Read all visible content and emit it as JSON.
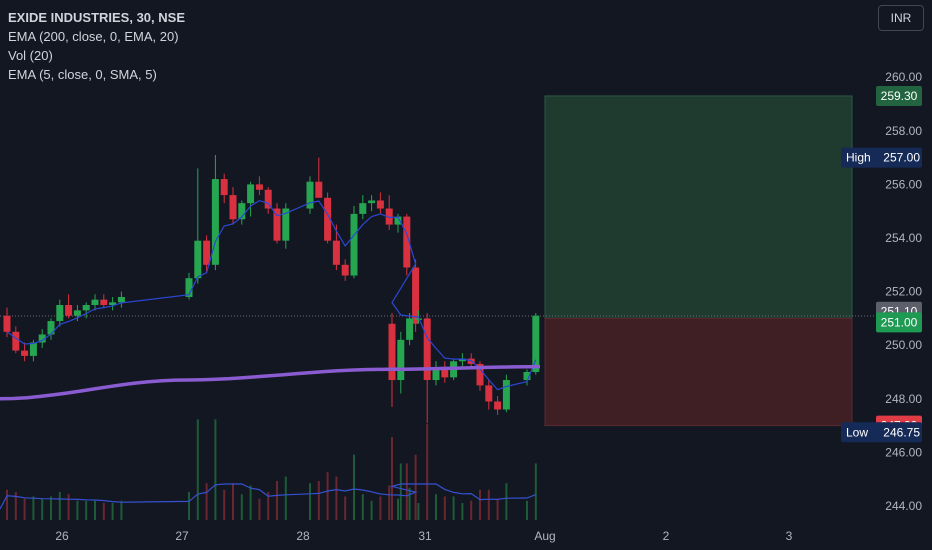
{
  "header": {
    "symbol": "EXIDE INDUSTRIES, 30, NSE",
    "indicators": [
      "EMA (200, close, 0, EMA, 20)",
      "Vol (20)",
      "EMA (5, close, 0, SMA, 5)"
    ],
    "currency_button": "INR"
  },
  "colors": {
    "background": "#131722",
    "up": "#26a650",
    "down": "#d9313f",
    "ema200": "#8a5cd1",
    "ema5": "#2b48d4",
    "volume_ma": "#3551d1",
    "profit_zone": "#1f3a2e",
    "loss_zone": "#3f1e24",
    "axis_text": "#b2b5be"
  },
  "chart_data": {
    "type": "candlestick",
    "title": "EXIDE INDUSTRIES, 30, NSE",
    "ylim": [
      243.5,
      261
    ],
    "y_ticks": [
      "244.00",
      "246.00",
      "248.00",
      "250.00",
      "252.00",
      "254.00",
      "256.00",
      "258.00",
      "260.00"
    ],
    "x_ticks": [
      "26",
      "27",
      "28",
      "31",
      "Aug",
      "2",
      "3"
    ],
    "grid": false,
    "price_labels": {
      "target": "259.30",
      "last": "251.10",
      "entry": "251.00",
      "stop": "247.00",
      "high_label": "High",
      "high_value": "257.00",
      "low_label": "Low",
      "low_value": "246.75"
    },
    "position_zone": {
      "entry": 251.0,
      "target": 259.3,
      "stop": 247.0
    },
    "sessions": [
      {
        "label": "26",
        "candles": [
          [
            251.1,
            251.4,
            250.3,
            250.5
          ],
          [
            250.5,
            250.7,
            249.7,
            249.8
          ],
          [
            249.8,
            250.1,
            249.4,
            249.6
          ],
          [
            249.6,
            250.2,
            249.4,
            250.1
          ],
          [
            250.1,
            250.6,
            249.9,
            250.4
          ],
          [
            250.4,
            251.0,
            250.2,
            250.9
          ],
          [
            250.9,
            251.7,
            250.7,
            251.5
          ],
          [
            251.5,
            251.9,
            251.0,
            251.1
          ],
          [
            251.1,
            251.5,
            250.9,
            251.3
          ],
          [
            251.3,
            251.6,
            251.0,
            251.5
          ],
          [
            251.5,
            251.9,
            251.3,
            251.7
          ],
          [
            251.7,
            251.9,
            251.4,
            251.5
          ],
          [
            251.5,
            251.8,
            251.3,
            251.6
          ],
          [
            251.6,
            252.0,
            251.4,
            251.8
          ]
        ]
      },
      {
        "label": "27",
        "candles": [
          [
            251.8,
            252.7,
            251.7,
            252.5
          ],
          [
            252.5,
            256.6,
            252.3,
            253.9
          ],
          [
            253.9,
            254.1,
            252.7,
            253.0
          ],
          [
            253.0,
            257.1,
            252.8,
            256.2
          ],
          [
            256.2,
            256.4,
            255.3,
            255.6
          ],
          [
            255.6,
            255.9,
            254.5,
            254.7
          ],
          [
            254.7,
            255.4,
            254.5,
            255.3
          ],
          [
            255.3,
            256.1,
            254.8,
            256.0
          ],
          [
            256.0,
            256.3,
            255.6,
            255.8
          ],
          [
            255.8,
            255.9,
            254.9,
            255.1
          ],
          [
            255.1,
            255.3,
            253.8,
            253.9
          ],
          [
            253.9,
            255.3,
            253.6,
            255.1
          ]
        ]
      },
      {
        "label": "28",
        "candles": [
          [
            255.1,
            256.3,
            254.9,
            256.1
          ],
          [
            256.1,
            257.0,
            255.5,
            255.5
          ],
          [
            255.5,
            255.7,
            253.8,
            253.9
          ],
          [
            253.9,
            254.5,
            252.8,
            253.0
          ],
          [
            253.0,
            253.2,
            252.4,
            252.6
          ],
          [
            252.6,
            255.2,
            252.5,
            254.9
          ],
          [
            254.9,
            255.6,
            254.7,
            255.3
          ],
          [
            255.3,
            255.6,
            255.0,
            255.4
          ],
          [
            255.4,
            255.7,
            254.9,
            255.1
          ],
          [
            255.1,
            255.6,
            254.3,
            254.5
          ],
          [
            254.5,
            254.9,
            254.2,
            254.8
          ],
          [
            254.8,
            254.9,
            252.6,
            252.9
          ],
          [
            252.9,
            253.2,
            250.5,
            250.8
          ]
        ]
      },
      {
        "label": "31",
        "candles": [
          [
            250.8,
            251.2,
            247.7,
            248.7
          ],
          [
            248.7,
            250.5,
            248.2,
            250.2
          ],
          [
            250.2,
            251.2,
            250.0,
            251.0
          ],
          [
            251.0,
            251.3,
            250.8,
            251.0
          ],
          [
            251.0,
            251.2,
            247.1,
            248.7
          ],
          [
            248.7,
            249.4,
            248.5,
            249.1
          ],
          [
            249.1,
            249.4,
            248.6,
            248.8
          ],
          [
            248.8,
            249.5,
            248.7,
            249.4
          ],
          [
            249.4,
            249.7,
            249.2,
            249.5
          ],
          [
            249.5,
            249.7,
            249.1,
            249.3
          ],
          [
            249.3,
            249.4,
            248.3,
            248.5
          ],
          [
            248.5,
            248.7,
            247.6,
            247.9
          ],
          [
            247.9,
            248.1,
            247.4,
            247.6
          ],
          [
            247.6,
            248.9,
            247.5,
            248.7
          ]
        ]
      },
      {
        "label": "Aug",
        "candles": [
          [
            248.7,
            249.1,
            248.5,
            249.0
          ],
          [
            249.0,
            251.2,
            248.9,
            251.1
          ]
        ]
      }
    ],
    "series": [
      {
        "name": "EMA (200, close, 0, EMA, 20)",
        "values": [
          248.0,
          248.7,
          249.1,
          249.2
        ]
      },
      {
        "name": "Vol (20)",
        "values": []
      },
      {
        "name": "EMA (5, close, 0, SMA, 5)",
        "values": []
      }
    ]
  }
}
